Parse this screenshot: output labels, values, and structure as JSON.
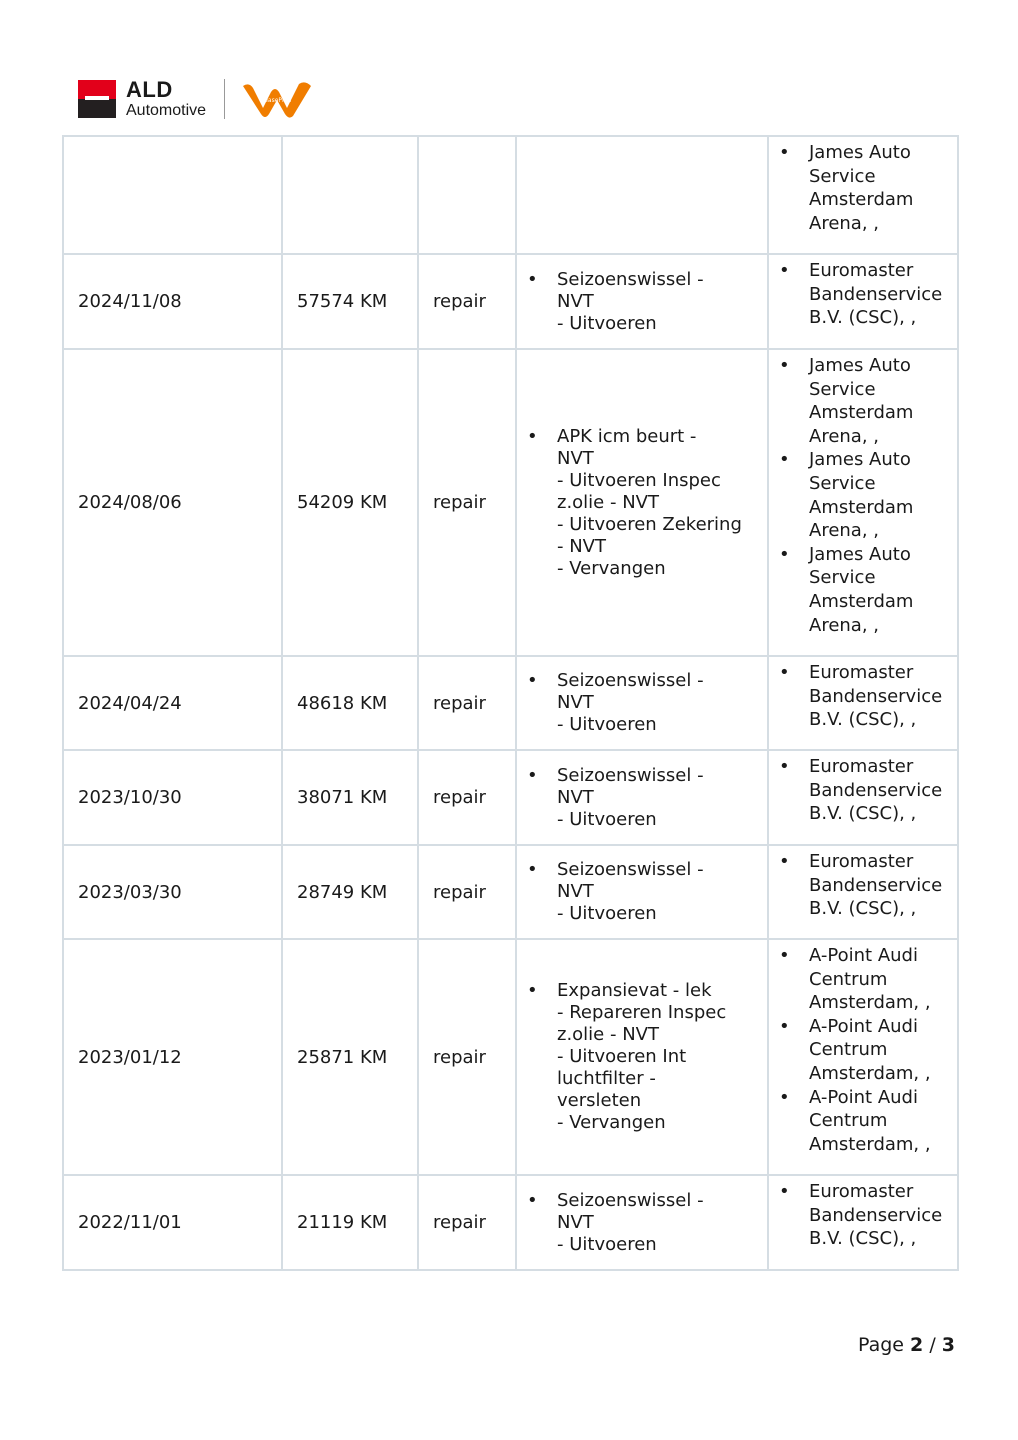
{
  "header": {
    "brand_primary": "ALD",
    "brand_secondary": "Automotive",
    "partner_logo": "LeasePlan",
    "brand_red": "#e2001a",
    "partner_orange": "#f07d00"
  },
  "rows": [
    {
      "date": "",
      "km": "",
      "type": "",
      "work": [],
      "suppliers": [
        "James Auto\nService\nAmsterdam\nArena, ,"
      ]
    },
    {
      "date": "2024/11/08",
      "km": "57574 KM",
      "type": "repair",
      "work": [
        "Seizoenswissel   -\nNVT\n- Uitvoeren"
      ],
      "suppliers": [
        "Euromaster\nBandenservice\nB.V. (CSC), ,"
      ]
    },
    {
      "date": "2024/08/06",
      "km": "54209 KM",
      "type": "repair",
      "work": [
        "APK icm beurt    -\nNVT\n- Uitvoeren  Inspec\nz.olie    - NVT\n- Uitvoeren  Zekering\n- NVT\n- Vervangen"
      ],
      "suppliers": [
        "James Auto\nService\nAmsterdam\nArena, ,",
        "James Auto\nService\nAmsterdam\nArena, ,",
        "James Auto\nService\nAmsterdam\nArena, ,"
      ]
    },
    {
      "date": "2024/04/24",
      "km": "48618 KM",
      "type": "repair",
      "work": [
        "Seizoenswissel   -\nNVT\n- Uitvoeren"
      ],
      "suppliers": [
        "Euromaster\nBandenservice\nB.V. (CSC), ,"
      ]
    },
    {
      "date": "2023/10/30",
      "km": "38071 KM",
      "type": "repair",
      "work": [
        "Seizoenswissel   -\nNVT\n- Uitvoeren"
      ],
      "suppliers": [
        "Euromaster\nBandenservice\nB.V. (CSC), ,"
      ]
    },
    {
      "date": "2023/03/30",
      "km": "28749 KM",
      "type": "repair",
      "work": [
        "Seizoenswissel   -\nNVT\n- Uitvoeren"
      ],
      "suppliers": [
        "Euromaster\nBandenservice\nB.V. (CSC), ,"
      ]
    },
    {
      "date": "2023/01/12",
      "km": "25871 KM",
      "type": "repair",
      "work": [
        "Expansievat      - lek\n- Repareren  Inspec\nz.olie    - NVT\n- Uitvoeren  Int\nluchtfilter  -\nversleten\n- Vervangen"
      ],
      "suppliers": [
        "A-Point Audi\nCentrum\nAmsterdam, ,",
        "A-Point Audi\nCentrum\nAmsterdam, ,",
        "A-Point Audi\nCentrum\nAmsterdam, ,"
      ]
    },
    {
      "date": "2022/11/01",
      "km": "21119 KM",
      "type": "repair",
      "work": [
        "Seizoenswissel   -\nNVT\n- Uitvoeren"
      ],
      "suppliers": [
        "Euromaster\nBandenservice\nB.V. (CSC), ,"
      ]
    }
  ],
  "footer": {
    "page_label": "Page",
    "current": "2",
    "separator": "/",
    "total": "3"
  }
}
